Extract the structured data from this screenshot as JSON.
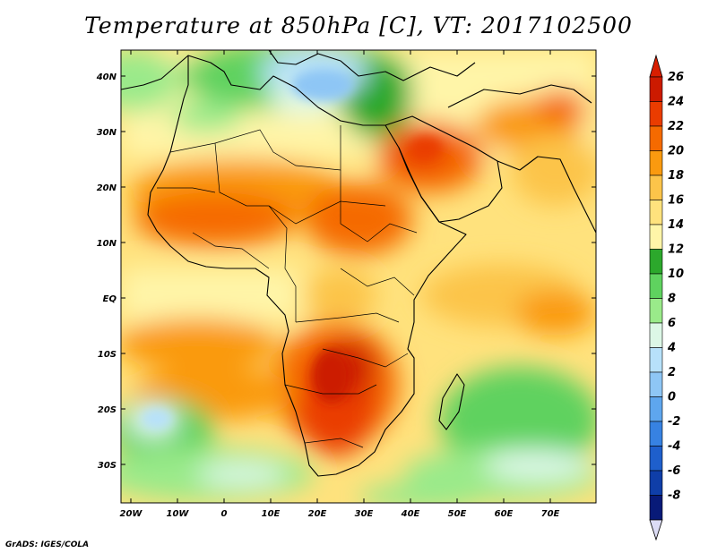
{
  "title": "Temperature at 850hPa [C], VT: 2017102500",
  "credit": "GrADS: IGES/COLA",
  "map": {
    "region": "Africa, Middle East and Arabian Sea",
    "lat_labels": [
      "40N",
      "30N",
      "20N",
      "10N",
      "EQ",
      "10S",
      "20S",
      "30S"
    ],
    "lon_labels": [
      "20W",
      "10W",
      "0",
      "10E",
      "20E",
      "30E",
      "40E",
      "50E",
      "60E",
      "70E"
    ]
  },
  "colorbar": {
    "levels": [
      "26",
      "24",
      "22",
      "20",
      "18",
      "16",
      "14",
      "12",
      "10",
      "8",
      "6",
      "4",
      "2",
      "0",
      "-2",
      "-4",
      "-6",
      "-8"
    ],
    "colors": [
      "#cc1a00",
      "#ea3c00",
      "#f56a00",
      "#fa9a0f",
      "#fcc44a",
      "#ffe27d",
      "#fff5a8",
      "#2ca82c",
      "#5fd25f",
      "#9aea8a",
      "#dcf7e6",
      "#b7e1fa",
      "#8ec6f5",
      "#5ea6ee",
      "#3782e2",
      "#1e5fcc",
      "#0f3ea8",
      "#081a78"
    ],
    "top_arrow_color": "#d81e00",
    "bottom_arrow_color": "#dcdcf5"
  }
}
